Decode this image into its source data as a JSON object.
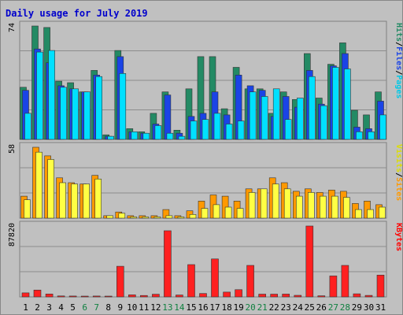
{
  "chart_data": {
    "type": "bar",
    "title": "Daily usage for July 2019",
    "categories": [
      "1",
      "2",
      "3",
      "4",
      "5",
      "6",
      "7",
      "8",
      "9",
      "10",
      "11",
      "12",
      "13",
      "14",
      "15",
      "16",
      "17",
      "18",
      "19",
      "20",
      "21",
      "22",
      "23",
      "24",
      "25",
      "26",
      "27",
      "28",
      "29",
      "30",
      "31"
    ],
    "weekend_days": [
      "6",
      "7",
      "13",
      "14",
      "20",
      "21",
      "27",
      "28"
    ],
    "panels": [
      {
        "name": "hits-files-pages",
        "scale_label": "74",
        "ymax": 74,
        "right_label": [
          "Pages",
          "Files",
          "Hits"
        ],
        "series": [
          {
            "name": "Hits",
            "color": "#238a64",
            "values": [
              34,
              74,
              73,
              38,
              37,
              31,
              45,
              3,
              58,
              7,
              5,
              17,
              31,
              6,
              33,
              54,
              54,
              20,
              47,
              33,
              33,
              17,
              31,
              26,
              56,
              27,
              49,
              63,
              19,
              16,
              31
            ]
          },
          {
            "name": "Files",
            "color": "#1a44e6",
            "values": [
              32,
              59,
              50,
              35,
              33,
              31,
              42,
              2,
              54,
              5,
              4,
              10,
              29,
              4,
              15,
              17,
              31,
              16,
              42,
              35,
              32,
              15,
              28,
              21,
              45,
              23,
              48,
              56,
              8,
              7,
              25
            ]
          },
          {
            "name": "Pages",
            "color": "#00e0ff",
            "values": [
              17,
              57,
              58,
              34,
              33,
              31,
              41,
              2,
              43,
              5,
              4,
              9,
              4,
              2,
              12,
              13,
              17,
              10,
              12,
              31,
              28,
              33,
              13,
              27,
              41,
              22,
              47,
              46,
              5,
              5,
              16
            ]
          }
        ]
      },
      {
        "name": "visits-sites",
        "scale_label": "58",
        "ymax": 58,
        "right_label": [
          "Sites",
          "Visits"
        ],
        "series": [
          {
            "name": "Visits",
            "color": "#ff9900",
            "values": [
              18,
              58,
              51,
              33,
              29,
              28,
              35,
              2,
              5,
              2,
              2,
              2,
              7,
              2,
              6,
              14,
              19,
              18,
              14,
              24,
              24,
              33,
              29,
              22,
              24,
              21,
              23,
              22,
              12,
              14,
              11
            ]
          },
          {
            "name": "Sites",
            "color": "#ffff44",
            "values": [
              15,
              54,
              48,
              29,
              28,
              28,
              32,
              2,
              4,
              1,
              1,
              1,
              2,
              1,
              3,
              8,
              11,
              9,
              8,
              21,
              24,
              28,
              24,
              18,
              21,
              18,
              18,
              17,
              7,
              7,
              9
            ]
          }
        ]
      },
      {
        "name": "kbytes",
        "scale_label": "87820",
        "ymax": 87820,
        "right_label": [
          "KBytes"
        ],
        "series": [
          {
            "name": "KBytes",
            "color": "#ff2020",
            "values": [
              5000,
              8500,
              3600,
              1200,
              1100,
              1000,
              1100,
              900,
              38000,
              2500,
              1800,
              3300,
              82000,
              2300,
              40000,
              4200,
              47000,
              6000,
              9000,
              39000,
              3400,
              3400,
              3500,
              2000,
              87820,
              1400,
              26000,
              39000,
              3800,
              1900,
              27000
            ]
          }
        ]
      }
    ]
  }
}
